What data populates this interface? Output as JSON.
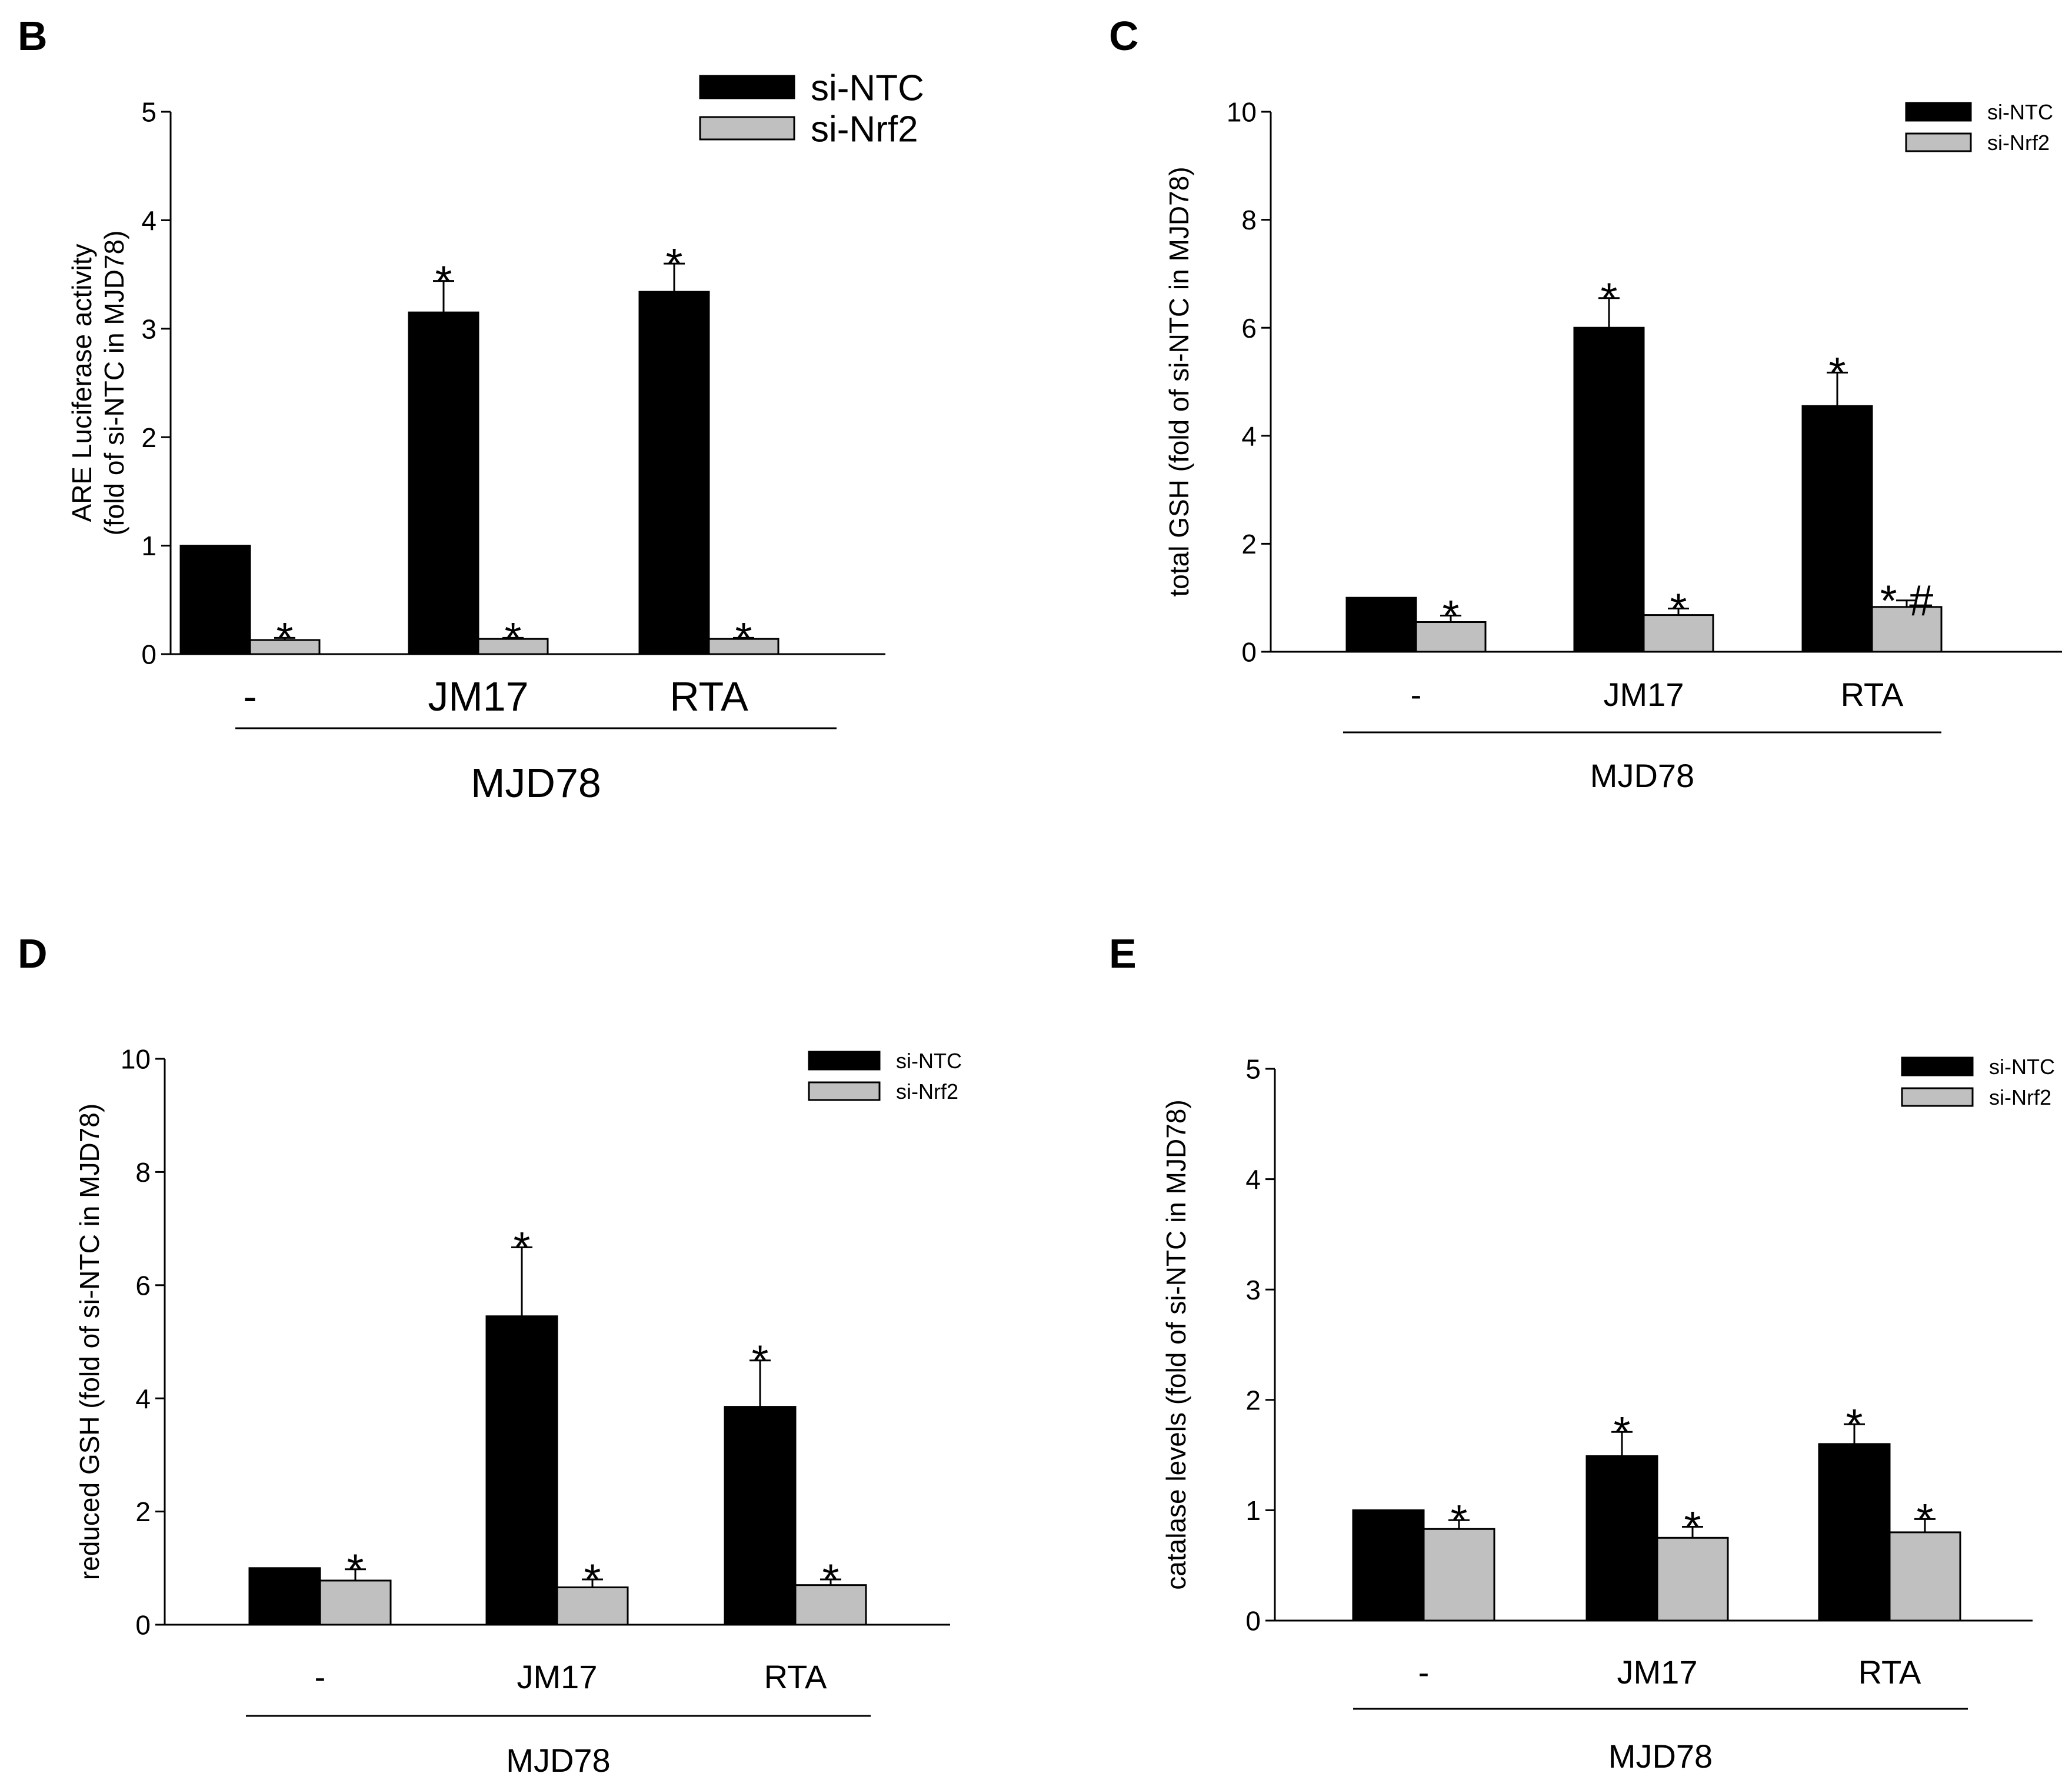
{
  "colors": {
    "series1": "#000000",
    "series2": "#c0c0c0",
    "axis": "#000000"
  },
  "chart_data": [
    {
      "type": "bar",
      "panel_label": "B",
      "ylabel": [
        "ARE Luciferase activity",
        "(fold of si-NTC in MJD78)"
      ],
      "ylim": [
        0,
        5
      ],
      "yticks": [
        "0",
        "1",
        "2",
        "3",
        "4",
        "5"
      ],
      "categories": [
        "-",
        "JM17",
        "RTA"
      ],
      "group_label": "MJD78",
      "legend": [
        "si-NTC",
        "si-Nrf2"
      ],
      "series": [
        {
          "name": "si-NTC",
          "values": [
            1.0,
            3.15,
            3.34
          ],
          "errors": [
            0,
            0.29,
            0.26
          ],
          "annotations": [
            "",
            "*",
            "*"
          ]
        },
        {
          "name": "si-Nrf2",
          "values": [
            0.13,
            0.14,
            0.14
          ],
          "errors": [
            0.02,
            0.01,
            0.01
          ],
          "annotations": [
            "*",
            "*",
            "*"
          ]
        }
      ]
    },
    {
      "type": "bar",
      "panel_label": "C",
      "ylabel": [
        "total GSH (fold of si-NTC in MJD78)"
      ],
      "ylim": [
        0,
        10
      ],
      "yticks": [
        "0",
        "2",
        "4",
        "6",
        "8",
        "10"
      ],
      "categories": [
        "-",
        "JM17",
        "RTA"
      ],
      "group_label": "MJD78",
      "legend": [
        "si-NTC",
        "si-Nrf2"
      ],
      "series": [
        {
          "name": "si-NTC",
          "values": [
            1.0,
            6.0,
            4.55
          ],
          "errors": [
            0,
            0.55,
            0.62
          ],
          "annotations": [
            "",
            "*",
            "*"
          ]
        },
        {
          "name": "si-Nrf2",
          "values": [
            0.55,
            0.68,
            0.83
          ],
          "errors": [
            0.12,
            0.12,
            0.12
          ],
          "annotations": [
            "*",
            "*",
            "* #"
          ]
        }
      ]
    },
    {
      "type": "bar",
      "panel_label": "D",
      "ylabel": [
        "reduced GSH (fold of si-NTC in MJD78)"
      ],
      "ylim": [
        0,
        10
      ],
      "yticks": [
        "0",
        "2",
        "4",
        "6",
        "8",
        "10"
      ],
      "categories": [
        "-",
        "JM17",
        "RTA"
      ],
      "group_label": "MJD78",
      "legend": [
        "si-NTC",
        "si-Nrf2"
      ],
      "series": [
        {
          "name": "si-NTC",
          "values": [
            1.0,
            5.45,
            3.85
          ],
          "errors": [
            0,
            1.22,
            0.82
          ],
          "annotations": [
            "",
            "*",
            "*"
          ]
        },
        {
          "name": "si-Nrf2",
          "values": [
            0.78,
            0.66,
            0.7
          ],
          "errors": [
            0.2,
            0.14,
            0.1
          ],
          "annotations": [
            "*",
            "*",
            "*"
          ]
        }
      ]
    },
    {
      "type": "bar",
      "panel_label": "E",
      "ylabel": [
        "catalase levels (fold of si-NTC in MJD78)"
      ],
      "ylim": [
        0,
        5
      ],
      "yticks": [
        "0",
        "1",
        "2",
        "3",
        "4",
        "5"
      ],
      "categories": [
        "-",
        "JM17",
        "RTA"
      ],
      "group_label": "MJD78",
      "legend": [
        "si-NTC",
        "si-Nrf2"
      ],
      "series": [
        {
          "name": "si-NTC",
          "values": [
            1.0,
            1.49,
            1.6
          ],
          "errors": [
            0,
            0.22,
            0.18
          ],
          "annotations": [
            "",
            "*",
            "*"
          ]
        },
        {
          "name": "si-Nrf2",
          "values": [
            0.83,
            0.75,
            0.8
          ],
          "errors": [
            0.08,
            0.1,
            0.12
          ],
          "annotations": [
            "*",
            "*",
            "*"
          ]
        }
      ]
    }
  ]
}
